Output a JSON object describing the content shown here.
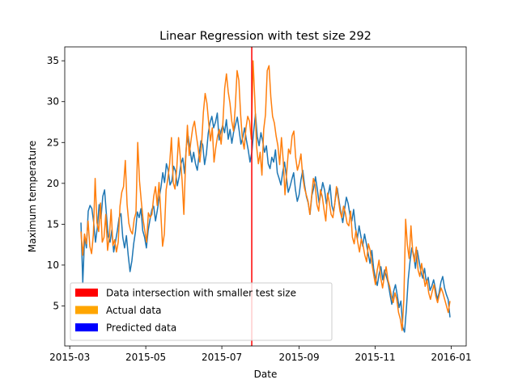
{
  "chart_data": {
    "type": "line",
    "title": "Linear Regression with test size 292",
    "xlabel": "Date",
    "ylabel": "Maximum temperature",
    "x_range": [
      "2015-03-10",
      "2015-12-31"
    ],
    "xlim": [
      "2015-02-25",
      "2016-01-13"
    ],
    "ylim": [
      0.1,
      36.7
    ],
    "x_ticks": [
      {
        "date": "2015-03-01",
        "label": "2015-03"
      },
      {
        "date": "2015-05-01",
        "label": "2015-05"
      },
      {
        "date": "2015-07-01",
        "label": "2015-07"
      },
      {
        "date": "2015-09-01",
        "label": "2015-09"
      },
      {
        "date": "2015-11-01",
        "label": "2015-11"
      },
      {
        "date": "2016-01-01",
        "label": "2016-01"
      }
    ],
    "y_ticks": [
      5,
      10,
      15,
      20,
      25,
      30,
      35
    ],
    "intersection_line": {
      "x": "2015-07-25",
      "color": "#ff0000"
    },
    "series": [
      {
        "color": "#1f77b4",
        "values": [
          15.2,
          7.8,
          13.5,
          12.1,
          16.6,
          17.3,
          16.9,
          15.2,
          12.8,
          14.6,
          17.4,
          15.7,
          18.4,
          19.2,
          16.2,
          13.5,
          12.8,
          14.3,
          11.6,
          12.9,
          14.2,
          15.8,
          16.3,
          13.4,
          12.1,
          13.6,
          11.2,
          9.2,
          10.5,
          12.6,
          14.1,
          16.5,
          15.8,
          16.9,
          14.2,
          13.4,
          12.1,
          14.3,
          15.6,
          16.8,
          17.2,
          15.4,
          16.7,
          18.2,
          19.5,
          21.3,
          20.1,
          22.4,
          21.6,
          19.8,
          20.3,
          22.1,
          21.5,
          19.7,
          20.8,
          22.4,
          23.1,
          21.2,
          24.6,
          25.8,
          24.1,
          22.6,
          23.8,
          22.4,
          21.6,
          23.5,
          25.2,
          24.7,
          22.3,
          23.6,
          26.1,
          27.4,
          28.2,
          26.8,
          27.5,
          28.6,
          25.3,
          26.4,
          27.1,
          26.2,
          27.8,
          25.4,
          26.6,
          24.9,
          26.3,
          27.2,
          28.1,
          26.5,
          24.8,
          25.6,
          26.8,
          25.3,
          24.1,
          22.6,
          23.8,
          26.4,
          28.5,
          25.7,
          24.6,
          26.2,
          25.1,
          23.8,
          24.6,
          22.4,
          21.8,
          23.2,
          22.6,
          24.1,
          21.3,
          20.6,
          19.8,
          21.4,
          22.6,
          20.8,
          18.9,
          19.6,
          20.5,
          21.3,
          19.2,
          17.8,
          18.6,
          20.4,
          21.6,
          19.8,
          18.4,
          17.6,
          16.2,
          18.5,
          19.4,
          20.8,
          19.3,
          17.6,
          18.8,
          20.1,
          19.2,
          17.5,
          18.6,
          19.8,
          17.3,
          16.5,
          18.2,
          19.4,
          17.8,
          16.4,
          15.2,
          16.8,
          18.3,
          17.5,
          16.1,
          15.4,
          16.8,
          14.6,
          13.2,
          14.8,
          13.5,
          12.3,
          13.8,
          12.6,
          11.4,
          10.2,
          11.8,
          9.6,
          8.4,
          7.5,
          8.9,
          9.8,
          8.2,
          9.4,
          8.6,
          7.8,
          6.4,
          5.2,
          6.8,
          7.6,
          6.3,
          4.8,
          5.6,
          2.4,
          1.8,
          4.6,
          8.2,
          10.4,
          12.1,
          11.3,
          9.6,
          11.8,
          10.5,
          9.2,
          8.4,
          9.6,
          7.8,
          8.5,
          6.9,
          7.4,
          8.2,
          7.1,
          5.8,
          6.6,
          7.9,
          8.6,
          7.2,
          6.4,
          5.8,
          3.6
        ]
      },
      {
        "color": "#ff7f0e",
        "values": [
          14.1,
          11.2,
          13.8,
          12.6,
          15.4,
          12.3,
          11.4,
          13.8,
          20.6,
          15.2,
          14.1,
          17.6,
          12.8,
          13.4,
          16.2,
          11.8,
          13.5,
          16.8,
          12.4,
          13.1,
          11.6,
          12.8,
          17.2,
          18.9,
          19.6,
          22.8,
          17.4,
          15.1,
          14.2,
          13.8,
          15.6,
          16.4,
          25.0,
          20.3,
          17.8,
          15.6,
          14.2,
          12.8,
          16.4,
          15.8,
          16.2,
          18.4,
          19.6,
          17.3,
          20.1,
          16.4,
          12.3,
          13.8,
          19.2,
          20.6,
          22.4,
          25.6,
          20.1,
          19.3,
          21.8,
          25.6,
          23.2,
          20.4,
          16.2,
          22.8,
          27.1,
          23.4,
          25.2,
          26.8,
          27.6,
          25.9,
          24.4,
          22.6,
          24.8,
          28.7,
          31.0,
          29.8,
          27.4,
          25.2,
          26.8,
          22.6,
          24.4,
          25.8,
          26.6,
          24.8,
          27.4,
          31.6,
          33.4,
          31.2,
          29.8,
          27.6,
          26.4,
          29.4,
          33.8,
          32.6,
          28.4,
          25.4,
          24.2,
          26.8,
          28.2,
          27.6,
          25.4,
          35.0,
          30.2,
          24.5,
          22.4,
          23.8,
          21.0,
          26.6,
          28.4,
          33.8,
          34.4,
          30.6,
          28.2,
          27.4,
          25.8,
          24.6,
          22.3,
          25.6,
          22.8,
          18.6,
          21.4,
          24.2,
          23.6,
          25.8,
          26.4,
          23.2,
          21.6,
          22.4,
          23.6,
          20.8,
          19.4,
          18.6,
          17.8,
          16.2,
          18.4,
          20.6,
          19.8,
          17.4,
          16.6,
          19.2,
          18.4,
          16.8,
          15.4,
          18.8,
          17.6,
          16.2,
          15.8,
          17.4,
          19.6,
          18.2,
          16.6,
          15.8,
          17.2,
          16.4,
          15.1,
          14.8,
          16.6,
          13.4,
          12.6,
          14.2,
          12.8,
          11.6,
          13.2,
          12.4,
          11.2,
          10.4,
          12.6,
          11.8,
          10.2,
          8.8,
          7.6,
          9.4,
          10.6,
          8.4,
          7.2,
          8.6,
          9.8,
          8.2,
          7.4,
          6.2,
          5.4,
          6.6,
          5.8,
          4.2,
          3.4,
          2.0,
          5.8,
          15.6,
          12.4,
          10.8,
          14.8,
          11.6,
          10.4,
          12.2,
          9.4,
          8.6,
          10.2,
          8.8,
          7.4,
          8.2,
          6.6,
          5.8,
          6.8,
          7.6,
          6.2,
          5.4,
          6.4,
          7.2,
          6.6,
          5.8,
          5.0,
          4.2,
          5.6
        ]
      }
    ],
    "legend": {
      "placement": "lower-left",
      "entries": [
        {
          "label": "Data intersection with smaller test size",
          "color": "#ff0000"
        },
        {
          "label": "Actual data",
          "color": "#ffa500"
        },
        {
          "label": "Predicted data",
          "color": "#0000ff"
        }
      ]
    }
  }
}
